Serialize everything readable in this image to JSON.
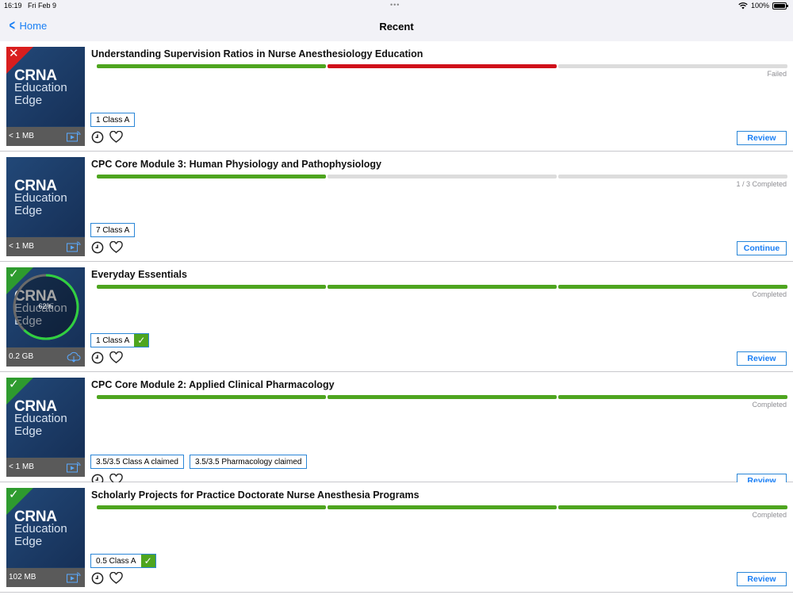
{
  "status_bar": {
    "time": "16:19",
    "date": "Fri Feb 9",
    "battery": "100%"
  },
  "nav": {
    "back_label": "Home",
    "title": "Recent"
  },
  "colors": {
    "accent": "#1a7ff5",
    "progress_green": "#4ea51f",
    "progress_red": "#d0101a",
    "badge_green": "#2e9b2e",
    "badge_red": "#d91e1e"
  },
  "items": [
    {
      "title": "Understanding Supervision Ratios in Nurse Anesthesiology Education",
      "thumb_line1": "CRNA",
      "thumb_line2": "Education",
      "thumb_line3": "Edge",
      "size": "< 1 MB",
      "segments": [
        "green",
        "red",
        "gray"
      ],
      "status": "Failed",
      "badge": "fail",
      "badge_mark": "✕",
      "tags": [
        {
          "label": "1 Class A",
          "checked": false
        }
      ],
      "action": "Review",
      "media_icon": "play-icon"
    },
    {
      "title": "CPC Core Module 3: Human Physiology and Pathophysiology",
      "thumb_line1": "CRNA",
      "thumb_line2": "Education",
      "thumb_line3": "Edge",
      "size": "< 1 MB",
      "segments": [
        "green",
        "gray",
        "gray"
      ],
      "status": "1 / 3 Completed",
      "badge": "none",
      "badge_mark": "",
      "tags": [
        {
          "label": "7 Class A",
          "checked": false
        }
      ],
      "action": "Continue",
      "media_icon": "play-icon"
    },
    {
      "title": "Everyday Essentials",
      "thumb_line1": "CRNA",
      "thumb_line2": "Education",
      "thumb_line3": "Edge",
      "size": "0.2 GB",
      "segments": [
        "green",
        "green",
        "green"
      ],
      "status": "Completed",
      "badge": "pass",
      "badge_mark": "✓",
      "download_percent": "62%",
      "download_fraction": 0.62,
      "tags": [
        {
          "label": "1 Class A",
          "checked": true
        }
      ],
      "action": "Review",
      "media_icon": "cloud-download-icon"
    },
    {
      "title": "CPC Core Module 2: Applied Clinical Pharmacology",
      "thumb_line1": "CRNA",
      "thumb_line2": "Education",
      "thumb_line3": "Edge",
      "size": "< 1 MB",
      "segments": [
        "green",
        "green",
        "green"
      ],
      "status": "Completed",
      "badge": "pass",
      "badge_mark": "✓",
      "tags": [
        {
          "label": "3.5/3.5 Class A claimed",
          "checked": false
        },
        {
          "label": "3.5/3.5 Pharmacology claimed",
          "checked": false
        }
      ],
      "action": "Review",
      "media_icon": "play-icon"
    },
    {
      "title": "Scholarly Projects for Practice Doctorate Nurse Anesthesia Programs",
      "thumb_line1": "CRNA",
      "thumb_line2": "Education",
      "thumb_line3": "Edge",
      "size": "102 MB",
      "segments": [
        "green",
        "green",
        "green"
      ],
      "status": "Completed",
      "badge": "pass",
      "badge_mark": "✓",
      "tags": [
        {
          "label": "0.5 Class A",
          "checked": true
        }
      ],
      "action": "Review",
      "media_icon": "play-icon"
    }
  ]
}
